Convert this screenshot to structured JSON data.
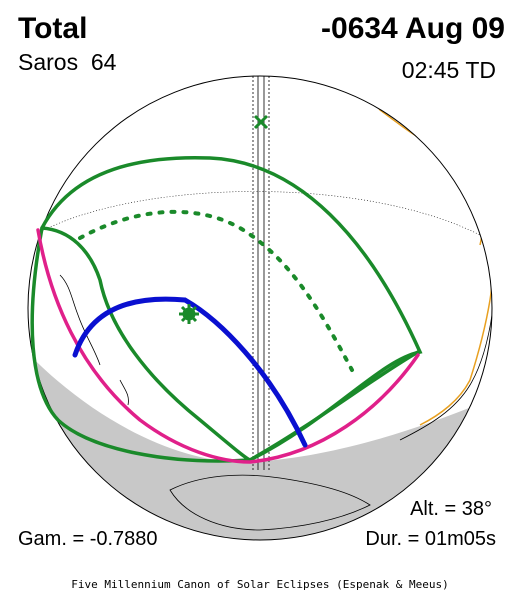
{
  "header": {
    "type": "Total",
    "date": "-0634 Aug 09",
    "saros": "Saros  64",
    "time": "02:45 TD"
  },
  "footer": {
    "altitude": "Alt. = 38°",
    "gamma": "Gam. = -0.7880",
    "duration": "Dur. = 01m05s",
    "credit": "Five Millennium Canon of Solar Eclipses (Espenak & Meeus)"
  }
}
